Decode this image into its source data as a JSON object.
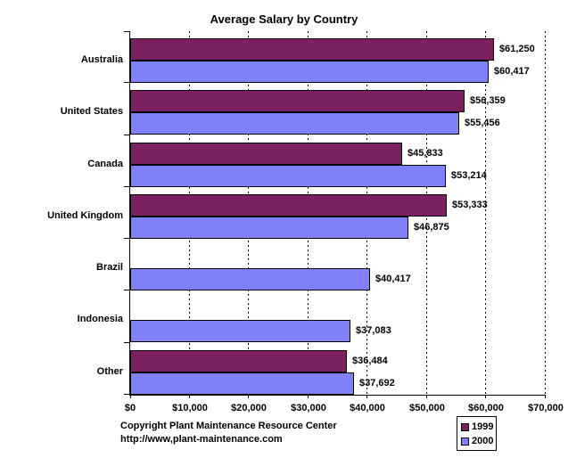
{
  "chart_data": {
    "type": "bar",
    "orientation": "horizontal",
    "title": "Average Salary by Country",
    "categories": [
      "Australia",
      "United States",
      "Canada",
      "United Kingdom",
      "Brazil",
      "Indonesia",
      "Other"
    ],
    "series": [
      {
        "name": "1999",
        "color": "#7B2162",
        "values": [
          61250,
          56359,
          45833,
          53333,
          null,
          null,
          36484
        ]
      },
      {
        "name": "2000",
        "color": "#8080F8",
        "values": [
          60417,
          55456,
          53214,
          46875,
          40417,
          37083,
          37692
        ]
      }
    ],
    "value_label_format": "$#,###",
    "xlim": [
      0,
      70000
    ],
    "x_tick_labels": [
      "$0",
      "$10,000",
      "$20,000",
      "$30,000",
      "$40,000",
      "$50,000",
      "$60,000",
      "$70,000"
    ],
    "gridlines": "vertical-dashed",
    "legend_position": "bottom-right"
  },
  "footer": {
    "line1": "Copyright Plant Maintenance Resource Center",
    "line2": "http://www,plant-maintenance.com"
  }
}
